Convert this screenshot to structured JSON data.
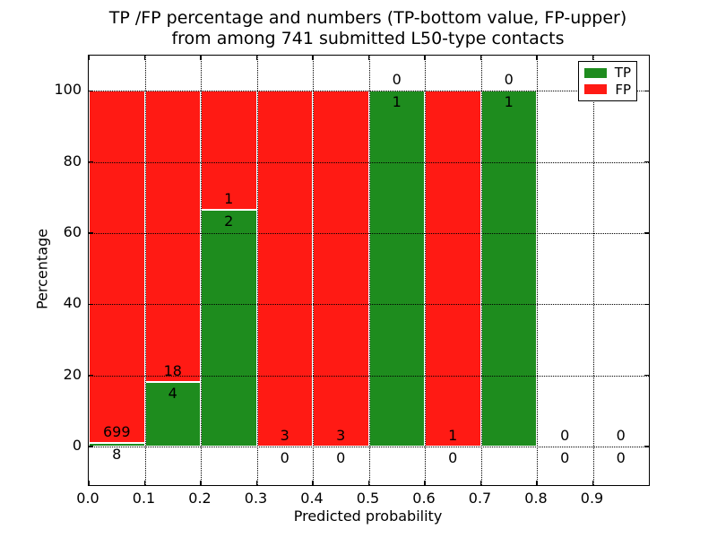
{
  "title": {
    "line1": "TP /FP percentage and numbers (TP-bottom value, FP-upper)",
    "line2": "from among 741 submitted L50-type contacts"
  },
  "axes": {
    "ylabel": "Percentage",
    "xlabel": "Predicted probability",
    "yticks": [
      "0",
      "20",
      "40",
      "60",
      "80",
      "100"
    ],
    "ytick_values": [
      0,
      20,
      40,
      60,
      80,
      100
    ],
    "xticks": [
      "0.0",
      "0.1",
      "0.2",
      "0.3",
      "0.4",
      "0.5",
      "0.6",
      "0.7",
      "0.8",
      "0.9"
    ],
    "xtick_values": [
      0.0,
      0.1,
      0.2,
      0.3,
      0.4,
      0.5,
      0.6,
      0.7,
      0.8,
      0.9
    ]
  },
  "legend": [
    {
      "label": "TP",
      "color": "#1e8c1e"
    },
    {
      "label": "FP",
      "color": "#ff1a14"
    }
  ],
  "colors": {
    "tp_green": "#1e8c1e",
    "fp_red": "#ff1a14",
    "bar_edge": "#ffffff",
    "grid": "#000000",
    "text": "#000000",
    "background": "#ffffff"
  },
  "chart_data": {
    "type": "bar",
    "stacked": true,
    "normalized_to_percent": true,
    "title": "TP /FP percentage and numbers (TP-bottom value, FP-upper) from among 741 submitted L50-type contacts",
    "xlabel": "Predicted probability",
    "ylabel": "Percentage",
    "xlim": [
      0.0,
      1.0
    ],
    "ylim": [
      -11,
      110
    ],
    "grid": "dotted, both axes, on top of bars",
    "legend_position": "upper right",
    "bin_width": 0.1,
    "categories": [
      "0.0-0.1",
      "0.1-0.2",
      "0.2-0.3",
      "0.3-0.4",
      "0.4-0.5",
      "0.5-0.6",
      "0.6-0.7",
      "0.7-0.8",
      "0.8-0.9",
      "0.9-1.0"
    ],
    "series": [
      {
        "name": "TP",
        "color": "#1e8c1e",
        "counts": [
          8,
          4,
          2,
          0,
          0,
          1,
          0,
          1,
          0,
          0
        ],
        "percentages": [
          1.13,
          18.18,
          66.67,
          0,
          0,
          100,
          0,
          100,
          null,
          null
        ],
        "label_position": "below TP/FP boundary"
      },
      {
        "name": "FP",
        "color": "#ff1a14",
        "counts": [
          699,
          18,
          1,
          3,
          3,
          0,
          1,
          0,
          0,
          0
        ],
        "percentages": [
          98.87,
          81.82,
          33.33,
          100,
          100,
          0,
          100,
          0,
          null,
          null
        ],
        "label_position": "above TP/FP boundary"
      }
    ],
    "total_contacts": 741
  }
}
